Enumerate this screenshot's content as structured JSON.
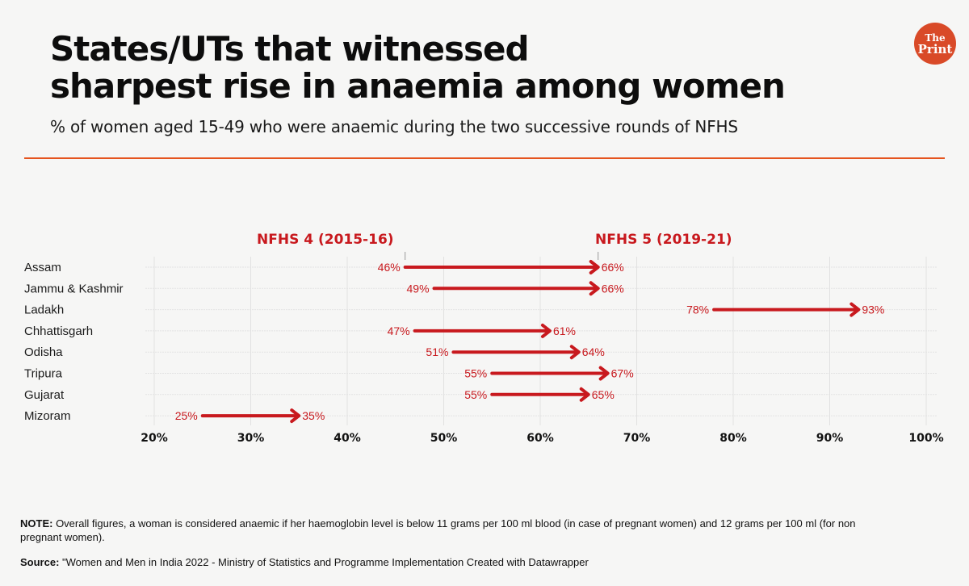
{
  "header": {
    "title_line1": "States/UTs that witnessed",
    "title_line2": "sharpest rise in anaemia among women",
    "subtitle": "% of women aged 15-49 who were anaemic during the two successive rounds of NFHS",
    "logo_line1": "The",
    "logo_line2": "Print",
    "accent_color": "#e5541e"
  },
  "chart_data": {
    "type": "arrow",
    "title": "States/UTs that witnessed sharpest rise in anaemia among women",
    "subtitle": "% of women aged 15-49 who were anaemic during the two successive rounds of NFHS",
    "series_names": [
      "NFHS 4 (2015-16)",
      "NFHS 5 (2019-21)"
    ],
    "categories": [
      "Assam",
      "Jammu & Kashmir",
      "Ladakh",
      "Chhattisgarh",
      "Odisha",
      "Tripura",
      "Gujarat",
      "Mizoram"
    ],
    "series": [
      {
        "name": "NFHS 4 (2015-16)",
        "values": [
          46,
          49,
          78,
          47,
          51,
          55,
          55,
          25
        ]
      },
      {
        "name": "NFHS 5 (2019-21)",
        "values": [
          66,
          66,
          93,
          61,
          64,
          67,
          65,
          35
        ]
      }
    ],
    "start_labels": [
      "46%",
      "49%",
      "78%",
      "47%",
      "51%",
      "55%",
      "55%",
      "25%"
    ],
    "end_labels": [
      "66%",
      "66%",
      "93%",
      "61%",
      "64%",
      "67%",
      "65%",
      "35%"
    ],
    "xlim": [
      20,
      100
    ],
    "xticks": [
      20,
      30,
      40,
      50,
      60,
      70,
      80,
      90,
      100
    ],
    "xtick_labels": [
      "20%",
      "30%",
      "40%",
      "50%",
      "60%",
      "70%",
      "80%",
      "90%",
      "100%"
    ],
    "xlabel": "",
    "ylabel": "",
    "grid": true,
    "arrow_color": "#c8191e"
  },
  "footer": {
    "note_label": "NOTE:",
    "note_text": " Overall figures, a woman is considered anaemic if her haemoglobin level is below 11 grams per 100 ml blood (in case of pregnant women) and 12 grams per 100 ml (for non pregnant women).",
    "source_label": "Source:",
    "source_text": " \"Women and Men in India 2022 - Ministry of Statistics and Programme Implementation Created with Datawrapper"
  }
}
